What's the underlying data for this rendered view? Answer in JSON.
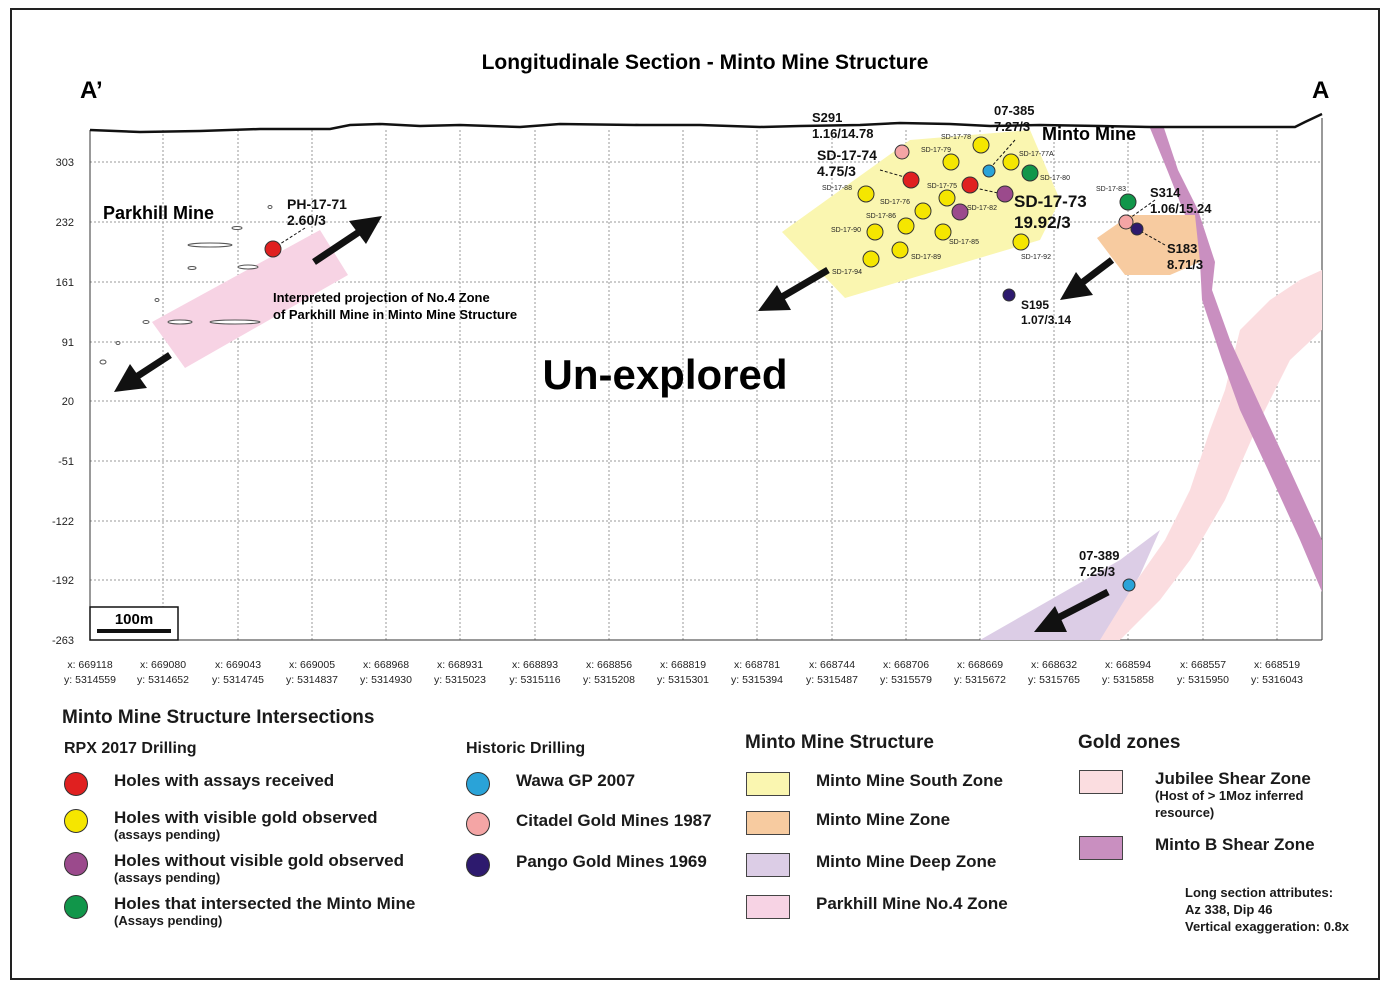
{
  "figure": {
    "title": "Longitudinale Section - Minto Mine Structure",
    "end_left": "A’",
    "end_right": "A",
    "main_annotation": "Un-explored",
    "scale_bar": "100m",
    "mine_labels": {
      "parkhill": "Parkhill Mine",
      "minto": "Minto Mine"
    },
    "projection_note": [
      "Interpreted projection of No.4 Zone",
      "of Parkhill Mine in Minto Mine Structure"
    ],
    "elevation_ticks": [
      "303",
      "232",
      "161",
      "91",
      "20",
      "-51",
      "-122",
      "-192",
      "-263"
    ],
    "x_ticks": [
      {
        "x": "x: 669118",
        "y": "y: 5314559"
      },
      {
        "x": "x: 669080",
        "y": "y: 5314652"
      },
      {
        "x": "x: 669043",
        "y": "y: 5314745"
      },
      {
        "x": "x: 669005",
        "y": "y: 5314837"
      },
      {
        "x": "x: 668968",
        "y": "y: 5314930"
      },
      {
        "x": "x: 668931",
        "y": "y: 5315023"
      },
      {
        "x": "x: 668893",
        "y": "y: 5315116"
      },
      {
        "x": "x: 668856",
        "y": "y: 5315208"
      },
      {
        "x": "x: 668819",
        "y": "y: 5315301"
      },
      {
        "x": "x: 668781",
        "y": "y: 5315394"
      },
      {
        "x": "x: 668744",
        "y": "y: 5315487"
      },
      {
        "x": "x: 668706",
        "y": "y: 5315579"
      },
      {
        "x": "x: 668669",
        "y": "y: 5315672"
      },
      {
        "x": "x: 668632",
        "y": "y: 5315765"
      },
      {
        "x": "x: 668594",
        "y": "y: 5315858"
      },
      {
        "x": "x: 668557",
        "y": "y: 5315950"
      },
      {
        "x": "x: 668519",
        "y": "y: 5316043"
      }
    ],
    "callouts": {
      "ph1771": [
        "PH-17-71",
        "2.60/3"
      ],
      "s291": [
        "S291",
        "1.16/14.78"
      ],
      "sd1774": [
        "SD-17-74",
        "4.75/3"
      ],
      "h07385": [
        "07-385",
        "7.27/3"
      ],
      "sd1773": [
        "SD-17-73",
        "19.92/3"
      ],
      "s314": [
        "S314",
        "1.06/15.24"
      ],
      "s183": [
        "S183",
        "8.71/3"
      ],
      "s195": [
        "S195",
        "1.07/3.14"
      ],
      "h07389": [
        "07-389",
        "7.25/3"
      ]
    },
    "small_hole_labels": [
      "SD-17-78",
      "SD-17-79",
      "SD-17-77A",
      "SD-17-80",
      "SD-17-88",
      "SD-17-75",
      "SD-17-76",
      "SD-17-82",
      "SD-17-86",
      "SD-17-90",
      "SD-17-85",
      "SD-17-89",
      "SD-17-94",
      "SD-17-92",
      "SD-17-83"
    ]
  },
  "colors": {
    "assays_received": "#e02020",
    "visible_gold": "#f5e600",
    "no_visible_gold": "#9b4a8c",
    "intersected_minto": "#11964a",
    "wawa": "#2aa3d8",
    "citadel": "#f4a5a5",
    "pango": "#2d1a6e",
    "south_zone": "#faf6b0",
    "mine_zone": "#f7cba0",
    "deep_zone": "#dccde6",
    "parkhill_no4": "#f7d3e4",
    "jubilee": "#fbdde0",
    "minto_b": "#c98fc0"
  },
  "legend": {
    "title": "Minto Mine Structure Intersections",
    "rpx": {
      "heading": "RPX 2017 Drilling",
      "items": [
        {
          "label": "Holes with assays received",
          "note": ""
        },
        {
          "label": "Holes with visible gold observed",
          "note": "(assays pending)"
        },
        {
          "label": "Holes without visible gold observed",
          "note": "(assays pending)"
        },
        {
          "label": "Holes that intersected the Minto Mine",
          "note": "(Assays pending)"
        }
      ]
    },
    "historic": {
      "heading": "Historic Drilling",
      "items": [
        "Wawa GP 2007",
        "Citadel Gold Mines 1987",
        "Pango Gold Mines 1969"
      ]
    },
    "structure": {
      "heading": "Minto Mine Structure",
      "items": [
        "Minto Mine South Zone",
        "Minto Mine Zone",
        "Minto Mine Deep Zone",
        "Parkhill Mine No.4 Zone"
      ]
    },
    "gold": {
      "heading": "Gold zones",
      "items": [
        {
          "label": "Jubilee Shear Zone",
          "note": "(Host of > 1Moz inferred resource)"
        },
        {
          "label": "Minto B Shear Zone",
          "note": ""
        }
      ]
    }
  },
  "attributes": [
    "Long section attributes:",
    "Az 338, Dip 46",
    "Vertical exaggeration: 0.8x"
  ]
}
